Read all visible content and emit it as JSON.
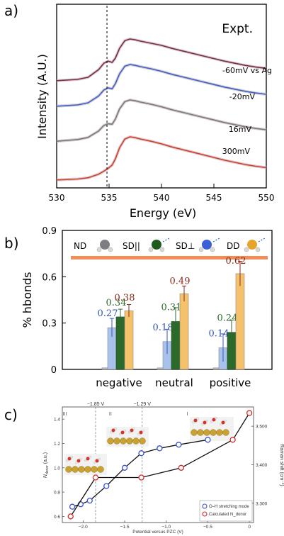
{
  "chart_data": [
    {
      "panel": "a)",
      "type": "line",
      "xlabel": "Energy (eV)",
      "ylabel": "Intensity (A.U.)",
      "xlim": [
        530,
        550
      ],
      "x_ticks": [
        "530",
        "535",
        "540",
        "545",
        "550"
      ],
      "annotation": "Expt.",
      "dashed_line_x": 534.8,
      "series": [
        {
          "name": "-60mV vs Ag",
          "color": "#7b2a4a",
          "offset": 3,
          "x": [
            530,
            532,
            533,
            534,
            534.5,
            534.9,
            535.3,
            535.6,
            536,
            536.5,
            537,
            537.5,
            538,
            539,
            540,
            541,
            542,
            543,
            544,
            545,
            546,
            547,
            548,
            549,
            550
          ],
          "y": [
            0.02,
            0.05,
            0.1,
            0.28,
            0.43,
            0.48,
            0.45,
            0.55,
            0.78,
            0.96,
            1.0,
            0.98,
            0.95,
            0.9,
            0.85,
            0.78,
            0.72,
            0.66,
            0.6,
            0.54,
            0.48,
            0.43,
            0.38,
            0.34,
            0.31
          ]
        },
        {
          "name": "-20mV",
          "color": "#3b63c4",
          "offset": 2,
          "x": [
            530,
            532,
            533,
            534,
            534.5,
            534.9,
            535.3,
            535.6,
            536,
            536.5,
            537,
            537.5,
            538,
            539,
            540,
            541,
            542,
            543,
            544,
            545,
            546,
            547,
            548,
            549,
            550
          ],
          "y": [
            0.02,
            0.05,
            0.1,
            0.26,
            0.4,
            0.45,
            0.43,
            0.55,
            0.78,
            0.96,
            1.0,
            0.98,
            0.95,
            0.9,
            0.84,
            0.77,
            0.71,
            0.65,
            0.59,
            0.53,
            0.47,
            0.42,
            0.37,
            0.33,
            0.3
          ]
        },
        {
          "name": "16mV",
          "color": "#7a7a7a",
          "offset": 1,
          "x": [
            530,
            532,
            533,
            534,
            534.5,
            534.9,
            535.3,
            535.6,
            536,
            536.5,
            537,
            537.5,
            538,
            539,
            540,
            541,
            542,
            543,
            544,
            545,
            546,
            547,
            548,
            549,
            550
          ],
          "y": [
            0.03,
            0.07,
            0.12,
            0.27,
            0.4,
            0.44,
            0.43,
            0.55,
            0.79,
            0.96,
            1.0,
            0.98,
            0.95,
            0.9,
            0.84,
            0.77,
            0.71,
            0.65,
            0.59,
            0.53,
            0.47,
            0.42,
            0.37,
            0.33,
            0.3
          ]
        },
        {
          "name": "300mV",
          "color": "#d3402b",
          "offset": 0,
          "x": [
            530,
            532,
            533,
            534,
            534.5,
            534.9,
            535.3,
            535.6,
            536,
            536.5,
            537,
            537.5,
            538,
            539,
            540,
            541,
            542,
            543,
            544,
            545,
            546,
            547,
            548,
            549,
            550
          ],
          "y": [
            0.02,
            0.04,
            0.07,
            0.15,
            0.22,
            0.28,
            0.36,
            0.5,
            0.75,
            0.95,
            1.0,
            0.98,
            0.95,
            0.9,
            0.84,
            0.77,
            0.71,
            0.65,
            0.59,
            0.53,
            0.47,
            0.42,
            0.37,
            0.33,
            0.3
          ]
        }
      ]
    },
    {
      "panel": "b)",
      "type": "bar",
      "ylabel": "% hbonds",
      "ylim": [
        0,
        0.9
      ],
      "y_ticks": [
        "0",
        "0.3",
        "0.6",
        "0.9"
      ],
      "categories": [
        "negative",
        "neutral",
        "positive"
      ],
      "legend": [
        "ND",
        "SD||",
        "SD⊥",
        "DD"
      ],
      "series": [
        {
          "name": "ND",
          "color": "#b9bcc2",
          "values": [
            0.01,
            0.01,
            0.01
          ],
          "errors": [
            0,
            0,
            0
          ]
        },
        {
          "name": "SD⊥",
          "color": "#a9c2ec",
          "label_color": "#3556b8",
          "values": [
            0.27,
            0.18,
            0.14
          ],
          "labels": [
            "0.27",
            "0.18",
            "0.14"
          ],
          "errors": [
            0.06,
            0.08,
            0.09
          ]
        },
        {
          "name": "SD||",
          "color": "#2c6a2c",
          "label_color": "#2c6a2c",
          "values": [
            0.34,
            0.31,
            0.24
          ],
          "labels": [
            "0.34",
            "0.31",
            "0.24"
          ],
          "errors": [
            0.05,
            0.09,
            0.08
          ]
        },
        {
          "name": "DD",
          "color": "#f5c16a",
          "label_color": "#8c2a1a",
          "values": [
            0.38,
            0.49,
            0.62
          ],
          "labels": [
            "0.38",
            "0.49",
            "0.62"
          ],
          "errors": [
            0.04,
            0.05,
            0.08
          ]
        }
      ]
    },
    {
      "panel": "c)",
      "type": "line",
      "xlabel": "Potential versus PZC (V)",
      "ylabel": "N_donor (a.u.)",
      "ylabel_right": "Raman shift (cm⁻¹)",
      "xlim": [
        -2.25,
        0.05
      ],
      "ylim": [
        0.55,
        1.5
      ],
      "ylim_right": [
        3.25,
        3.55
      ],
      "x_ticks": [
        "−2.0",
        "−1.5",
        "−1.0",
        "−0.5",
        "0"
      ],
      "y_ticks": [
        "0.6",
        "0.8",
        "1.0",
        "1.2",
        "1.4"
      ],
      "y_ticks_right": [
        "3.300",
        "3.400",
        "3.500"
      ],
      "regions": [
        "III",
        "II",
        "I"
      ],
      "boundaries": [
        "−1.85 V",
        "−1.29 V"
      ],
      "boundary_values": [
        -1.85,
        -1.29
      ],
      "series": [
        {
          "name": "O–H stretching mode",
          "color": "#3a4fc8",
          "x": [
            -2.13,
            -2.03,
            -1.92,
            -1.72,
            -1.5,
            -1.3,
            -1.08,
            -0.85,
            -0.5
          ],
          "y": [
            0.68,
            0.7,
            0.73,
            0.85,
            1.0,
            1.12,
            1.16,
            1.19,
            1.23
          ]
        },
        {
          "name": "Calculated N_donor",
          "color": "#d42a2a",
          "x": [
            -2.15,
            -1.85,
            -1.3,
            -0.82,
            -0.2,
            0
          ],
          "y": [
            0.6,
            0.92,
            0.92,
            1.0,
            1.23,
            1.45
          ]
        }
      ]
    }
  ],
  "panels": {
    "a": {
      "label": "a)",
      "xlabel": "Energy (eV)",
      "ylabel": "Intensity (A.U.)",
      "expt": "Expt."
    },
    "b": {
      "label": "b)",
      "ylabel": "% hbonds"
    },
    "c": {
      "label": "c)",
      "xlabel": "Potential versus PZC (V)",
      "ylabel_left": "N",
      "ylabel_left_sub": "donor",
      "ylabel_left_unit": " (a.u.)",
      "ylabel_right": "Raman shift (cm⁻¹)"
    }
  }
}
